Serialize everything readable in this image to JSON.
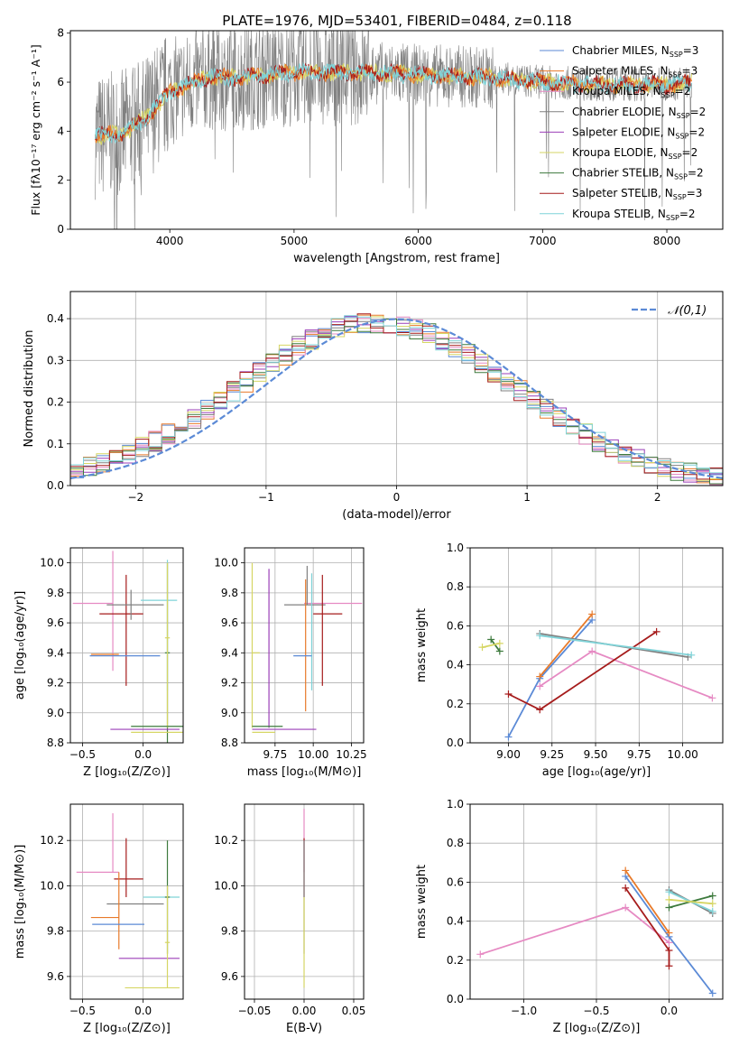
{
  "figure_title": "PLATE=1976, MJD=53401, FIBERID=0484, z=0.118",
  "colors": {
    "chabrier_miles": "#5b8ad6",
    "salpeter_miles": "#e87a2a",
    "kroupa_miles": "#e68ac3",
    "chabrier_elodie": "#808080",
    "salpeter_elodie": "#9b3fb8",
    "kroupa_elodie": "#d6d664",
    "chabrier_stelib": "#3d7a3d",
    "salpeter_stelib": "#a61c1c",
    "kroupa_stelib": "#7fd3d8",
    "normal_curve": "#5b8ad6"
  },
  "chart_data": [
    {
      "id": "spectrum",
      "type": "line",
      "title": "PLATE=1976, MJD=53401, FIBERID=0484, z=0.118",
      "xlabel": "wavelength [Angstrom, rest frame]",
      "ylabel": "Flux [f",
      "ylabel_full": "Flux [fλ10⁻¹⁷ erg cm⁻² s⁻¹ A⁻¹]",
      "xlim": [
        3200,
        8450
      ],
      "ylim": [
        0,
        8.1
      ],
      "xticks": [
        4000,
        5000,
        6000,
        7000,
        8000
      ],
      "yticks": [
        0,
        2,
        4,
        6,
        8
      ],
      "legend_position": "top-right",
      "legend": [
        "Chabrier MILES, N_SSP=3",
        "Salpeter MILES, N_SSP=3",
        "Kroupa MILES, N_SSP=2",
        "Chabrier ELODIE, N_SSP=2",
        "Salpeter ELODIE, N_SSP=2",
        "Kroupa ELODIE, N_SSP=2",
        "Chabrier STELIB, N_SSP=2",
        "Salpeter STELIB, N_SSP=3",
        "Kroupa STELIB, N_SSP=2"
      ],
      "continuum": {
        "x": [
          3400,
          3600,
          3800,
          4000,
          4300,
          4600,
          5000,
          5500,
          6000,
          6500,
          7000,
          7500,
          8000,
          8200
        ],
        "y": [
          3.8,
          3.9,
          4.5,
          5.6,
          6.2,
          6.2,
          6.4,
          6.4,
          6.3,
          6.2,
          6.0,
          5.9,
          5.9,
          6.0
        ]
      },
      "grid": false
    },
    {
      "id": "residuals",
      "type": "histogram",
      "xlabel": "(data-model)/error",
      "ylabel": "Normed distribution",
      "xlim": [
        -2.5,
        2.5
      ],
      "ylim": [
        0,
        0.465
      ],
      "xticks": [
        -2,
        -1,
        0,
        1,
        2
      ],
      "yticks": [
        0.0,
        0.1,
        0.2,
        0.3,
        0.4
      ],
      "legend": "𝒩(0,1)",
      "legend_position": "top-right",
      "bin_width": 0.1,
      "grid": true
    },
    {
      "id": "age_vs_Z",
      "type": "errorbar",
      "xlabel": "Z [log₁₀(Z/Z⊙)]",
      "ylabel": "age  [log₁₀(age/yr)]",
      "xlim": [
        -0.6,
        0.33
      ],
      "ylim": [
        8.8,
        10.1
      ],
      "xticks": [
        -0.5,
        0.0
      ],
      "yticks": [
        8.8,
        9.0,
        9.2,
        9.4,
        9.6,
        9.8,
        10.0
      ],
      "grid": true,
      "points": [
        {
          "series": "kroupa_miles",
          "x": -0.25,
          "xerr": [
            0.33,
            0.0
          ],
          "y": 9.73,
          "yerr": [
            0.45,
            0.35
          ]
        },
        {
          "series": "salpeter_stelib",
          "x": -0.14,
          "xerr": [
            0.22,
            0.14
          ],
          "y": 9.66,
          "yerr": [
            0.48,
            0.26
          ]
        },
        {
          "series": "chabrier_elodie",
          "x": -0.1,
          "xerr": [
            0.2,
            0.27
          ],
          "y": 9.72,
          "yerr": [
            0.1,
            0.1
          ]
        },
        {
          "series": "salpeter_miles",
          "x": -0.2,
          "xerr": [
            0.23,
            0.0
          ],
          "y": 9.39,
          "yerr": [
            0.0,
            0.0
          ]
        },
        {
          "series": "chabrier_miles",
          "x": -0.14,
          "xerr": [
            0.3,
            0.28
          ],
          "y": 9.38,
          "yerr": [
            0.0,
            0.0
          ]
        },
        {
          "series": "chabrier_stelib",
          "x": 0.2,
          "xerr": [
            0.02,
            0.02
          ],
          "y": 9.4,
          "yerr": [
            0.6,
            0.6
          ]
        },
        {
          "series": "kroupa_stelib",
          "x": 0.2,
          "xerr": [
            0.22,
            0.08
          ],
          "y": 9.75,
          "yerr": [
            0.6,
            0.27
          ]
        },
        {
          "series": "kroupa_elodie",
          "x": 0.2,
          "xerr": [
            0.02,
            0.02
          ],
          "y": 9.5,
          "yerr": [
            0.6,
            0.5
          ]
        },
        {
          "series": "salpeter_elodie",
          "x": 0.0,
          "xerr": [
            0.27,
            0.3
          ],
          "y": 8.89,
          "yerr": [
            0.0,
            0.0
          ]
        },
        {
          "series": "chabrier_stelib",
          "x": 0.1,
          "xerr": [
            0.2,
            0.3
          ],
          "y": 8.91,
          "yerr": [
            0.0,
            0.0
          ]
        },
        {
          "series": "kroupa_elodie",
          "x": 0.1,
          "xerr": [
            0.2,
            0.3
          ],
          "y": 8.87,
          "yerr": [
            0.0,
            0.0
          ]
        }
      ]
    },
    {
      "id": "age_vs_mass",
      "type": "errorbar",
      "xlabel": "mass [log₁₀(M/M⊙)]",
      "xlim": [
        9.55,
        10.33
      ],
      "ylim": [
        8.8,
        10.1
      ],
      "xticks": [
        9.75,
        10.0,
        10.25
      ],
      "yticks": [
        8.8,
        9.0,
        9.2,
        9.4,
        9.6,
        9.8,
        10.0
      ],
      "grid": true,
      "points": [
        {
          "series": "kroupa_miles",
          "x": 10.07,
          "xerr": [
            0.13,
            0.25
          ],
          "y": 9.73,
          "yerr": [
            0.0,
            0.0
          ]
        },
        {
          "series": "chabrier_elodie",
          "x": 9.96,
          "xerr": [
            0.15,
            0.12
          ],
          "y": 9.72,
          "yerr": [
            0.0,
            0.26
          ]
        },
        {
          "series": "salpeter_stelib",
          "x": 10.06,
          "xerr": [
            0.06,
            0.13
          ],
          "y": 9.66,
          "yerr": [
            0.48,
            0.26
          ]
        },
        {
          "series": "kroupa_stelib",
          "x": 9.99,
          "xerr": [
            0.0,
            0.0
          ],
          "y": 9.75,
          "yerr": [
            0.6,
            0.18
          ]
        },
        {
          "series": "salpeter_miles",
          "x": 9.95,
          "xerr": [
            0.0,
            0.0
          ],
          "y": 9.39,
          "yerr": [
            0.38,
            0.5
          ]
        },
        {
          "series": "chabrier_miles",
          "x": 9.87,
          "xerr": [
            0.0,
            0.12
          ],
          "y": 9.38,
          "yerr": [
            0.0,
            0.0
          ]
        },
        {
          "series": "salpeter_elodie",
          "x": 9.71,
          "xerr": [
            0.0,
            0.0
          ],
          "y": 9.4,
          "yerr": [
            0.5,
            0.56
          ]
        },
        {
          "series": "kroupa_elodie",
          "x": 9.6,
          "xerr": [
            0.0,
            0.05
          ],
          "y": 9.4,
          "yerr": [
            0.5,
            0.6
          ]
        },
        {
          "series": "chabrier_stelib",
          "x": 9.7,
          "xerr": [
            0.1,
            0.1
          ],
          "y": 8.91,
          "yerr": [
            0.0,
            0.0
          ]
        },
        {
          "series": "salpeter_elodie",
          "x": 9.9,
          "xerr": [
            0.3,
            0.12
          ],
          "y": 8.89,
          "yerr": [
            0.0,
            0.0
          ]
        },
        {
          "series": "kroupa_elodie",
          "x": 9.7,
          "xerr": [
            0.1,
            0.05
          ],
          "y": 8.87,
          "yerr": [
            0.0,
            0.0
          ]
        }
      ]
    },
    {
      "id": "weight_vs_age",
      "type": "line",
      "xlabel": "age  [log₁₀(age/yr)]",
      "ylabel": "mass weight",
      "xlim": [
        8.78,
        10.23
      ],
      "ylim": [
        0.0,
        1.0
      ],
      "xticks": [
        9.0,
        9.25,
        9.5,
        9.75,
        10.0
      ],
      "yticks": [
        0.0,
        0.2,
        0.4,
        0.6,
        0.8,
        1.0
      ],
      "grid": true,
      "series": [
        {
          "series": "chabrier_miles",
          "x": [
            9.0,
            9.18,
            9.48
          ],
          "y": [
            0.03,
            0.33,
            0.63
          ]
        },
        {
          "series": "salpeter_miles",
          "x": [
            9.18,
            9.48
          ],
          "y": [
            0.34,
            0.66
          ]
        },
        {
          "series": "kroupa_miles",
          "x": [
            9.18,
            9.48,
            10.17
          ],
          "y": [
            0.29,
            0.47,
            0.23
          ]
        },
        {
          "series": "salpeter_stelib",
          "x": [
            9.0,
            9.18,
            9.85
          ],
          "y": [
            0.25,
            0.17,
            0.57
          ]
        },
        {
          "series": "chabrier_elodie",
          "x": [
            9.18,
            10.03
          ],
          "y": [
            0.56,
            0.44
          ]
        },
        {
          "series": "kroupa_stelib",
          "x": [
            9.18,
            10.05
          ],
          "y": [
            0.55,
            0.45
          ]
        },
        {
          "series": "chabrier_stelib",
          "x": [
            8.9,
            8.95
          ],
          "y": [
            0.53,
            0.47
          ]
        },
        {
          "series": "kroupa_elodie",
          "x": [
            8.85,
            8.95
          ],
          "y": [
            0.49,
            0.51
          ]
        }
      ]
    },
    {
      "id": "mass_vs_Z",
      "type": "errorbar",
      "xlabel": "Z [log₁₀(Z/Z⊙)]",
      "ylabel": "mass [log₁₀(M/M⊙)]",
      "xlim": [
        -0.6,
        0.33
      ],
      "ylim": [
        9.5,
        10.36
      ],
      "xticks": [
        -0.5,
        0.0
      ],
      "yticks": [
        9.6,
        9.8,
        10.0,
        10.2
      ],
      "grid": true,
      "points": [
        {
          "series": "kroupa_miles",
          "x": -0.25,
          "xerr": [
            0.3,
            0.05
          ],
          "y": 10.06,
          "yerr": [
            0.0,
            0.26
          ]
        },
        {
          "series": "salpeter_stelib",
          "x": -0.14,
          "xerr": [
            0.1,
            0.14
          ],
          "y": 10.03,
          "yerr": [
            0.08,
            0.18
          ]
        },
        {
          "series": "chabrier_elodie",
          "x": -0.1,
          "xerr": [
            0.2,
            0.27
          ],
          "y": 9.92,
          "yerr": [
            0.0,
            0.0
          ]
        },
        {
          "series": "salpeter_miles",
          "x": -0.2,
          "xerr": [
            0.23,
            0.0
          ],
          "y": 9.86,
          "yerr": [
            0.14,
            0.2
          ]
        },
        {
          "series": "chabrier_miles",
          "x": -0.14,
          "xerr": [
            0.28,
            0.15
          ],
          "y": 9.83,
          "yerr": [
            0.0,
            0.0
          ]
        },
        {
          "series": "kroupa_stelib",
          "x": 0.2,
          "xerr": [
            0.2,
            0.1
          ],
          "y": 9.95,
          "yerr": [
            0.0,
            0.0
          ]
        },
        {
          "series": "chabrier_stelib",
          "x": 0.2,
          "xerr": [
            0.02,
            0.02
          ],
          "y": 9.95,
          "yerr": [
            0.25,
            0.25
          ]
        },
        {
          "series": "salpeter_elodie",
          "x": 0.2,
          "xerr": [
            0.4,
            0.1
          ],
          "y": 9.68,
          "yerr": [
            0.0,
            0.0
          ]
        },
        {
          "series": "kroupa_elodie",
          "x": 0.2,
          "xerr": [
            0.02,
            0.02
          ],
          "y": 9.75,
          "yerr": [
            0.2,
            0.25
          ]
        },
        {
          "series": "kroupa_elodie",
          "x": 0.1,
          "xerr": [
            0.25,
            0.2
          ],
          "y": 9.55,
          "yerr": [
            0.0,
            0.0
          ]
        }
      ]
    },
    {
      "id": "mass_vs_ebv",
      "type": "errorbar",
      "xlabel": "E(B-V)",
      "xlim": [
        -0.06,
        0.06
      ],
      "ylim": [
        9.5,
        10.36
      ],
      "xticks": [
        -0.05,
        0.0,
        0.05
      ],
      "yticks": [
        9.6,
        9.8,
        10.0,
        10.2
      ],
      "grid": true,
      "points": [
        {
          "series": "kroupa_miles",
          "x": 0.0,
          "xerr": [
            0,
            0
          ],
          "y": 10.06,
          "yerr": [
            0.0,
            0.28
          ]
        },
        {
          "series": "salpeter_stelib",
          "x": 0.0,
          "xerr": [
            0,
            0
          ],
          "y": 10.03,
          "yerr": [
            0.08,
            0.18
          ]
        },
        {
          "series": "chabrier_elodie",
          "x": 0.0,
          "xerr": [
            0,
            0
          ],
          "y": 9.9,
          "yerr": [
            0.2,
            0.3
          ]
        },
        {
          "series": "kroupa_elodie",
          "x": 0.0,
          "xerr": [
            0,
            0
          ],
          "y": 9.75,
          "yerr": [
            0.2,
            0.2
          ]
        }
      ]
    },
    {
      "id": "weight_vs_Z",
      "type": "line",
      "xlabel": "Z [log₁₀(Z/Z⊙)]",
      "ylabel": "mass weight",
      "xlim": [
        -1.37,
        0.37
      ],
      "ylim": [
        0.0,
        1.0
      ],
      "xticks": [
        -1.0,
        -0.5,
        0.0
      ],
      "yticks": [
        0.0,
        0.2,
        0.4,
        0.6,
        0.8,
        1.0
      ],
      "grid": true,
      "series": [
        {
          "series": "chabrier_miles",
          "x": [
            -0.3,
            0.0,
            0.3
          ],
          "y": [
            0.63,
            0.32,
            0.03
          ]
        },
        {
          "series": "salpeter_miles",
          "x": [
            -0.3,
            0.0
          ],
          "y": [
            0.66,
            0.34
          ]
        },
        {
          "series": "kroupa_miles",
          "x": [
            -1.3,
            -0.3,
            0.0
          ],
          "y": [
            0.23,
            0.47,
            0.29
          ]
        },
        {
          "series": "salpeter_stelib",
          "x": [
            -0.3,
            0.0,
            0.0
          ],
          "y": [
            0.57,
            0.25,
            0.17
          ]
        },
        {
          "series": "chabrier_elodie",
          "x": [
            0.0,
            0.3
          ],
          "y": [
            0.56,
            0.44
          ]
        },
        {
          "series": "kroupa_stelib",
          "x": [
            0.0,
            0.3
          ],
          "y": [
            0.55,
            0.45
          ]
        },
        {
          "series": "chabrier_stelib",
          "x": [
            0.0,
            0.3
          ],
          "y": [
            0.47,
            0.53
          ]
        },
        {
          "series": "kroupa_elodie",
          "x": [
            0.0,
            0.3
          ],
          "y": [
            0.51,
            0.49
          ]
        }
      ]
    }
  ]
}
